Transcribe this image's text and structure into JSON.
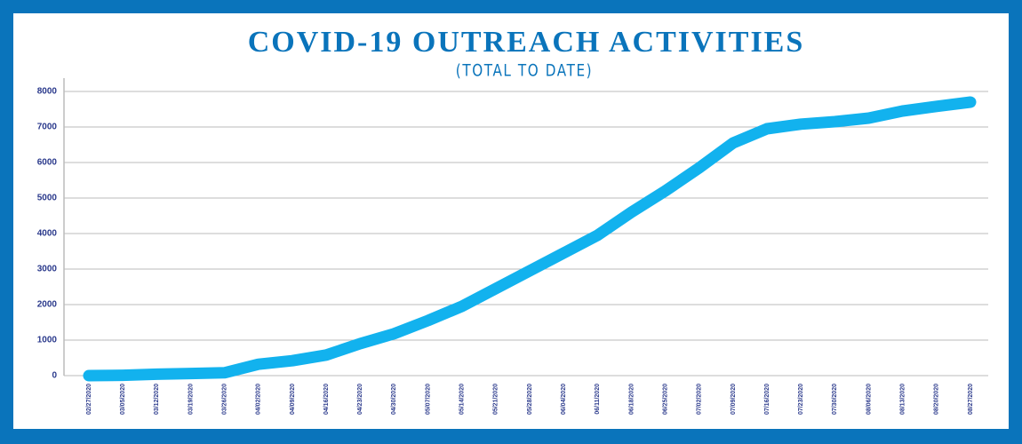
{
  "chart_data": {
    "type": "line",
    "title": "COVID-19 OUTREACH ACTIVITIES",
    "subtitle": "(TOTAL TO DATE)",
    "categories": [
      "02/27/2020",
      "03/05/2020",
      "03/12/2020",
      "03/19/2020",
      "03/26/2020",
      "04/02/2020",
      "04/09/2020",
      "04/16/2020",
      "04/23/2020",
      "04/30/2020",
      "05/07/2020",
      "05/14/2020",
      "05/21/2020",
      "05/28/2020",
      "06/04/2020",
      "06/11/2020",
      "06/18/2020",
      "06/25/2020",
      "07/02/2020",
      "07/09/2020",
      "07/16/2020",
      "07/23/2020",
      "07/30/2020",
      "08/06/2020",
      "08/13/2020",
      "08/20/2020",
      "08/27/2020"
    ],
    "values": [
      0,
      10,
      40,
      60,
      80,
      320,
      420,
      580,
      900,
      1180,
      1550,
      1950,
      2450,
      2950,
      3450,
      3950,
      4600,
      5200,
      5850,
      6550,
      6950,
      7080,
      7150,
      7250,
      7450,
      7580,
      7700
    ],
    "color": "#12b2ee",
    "ylim": [
      0,
      8000
    ],
    "yticks": [
      0,
      1000,
      2000,
      3000,
      4000,
      5000,
      6000,
      7000,
      8000
    ],
    "grid": true
  }
}
